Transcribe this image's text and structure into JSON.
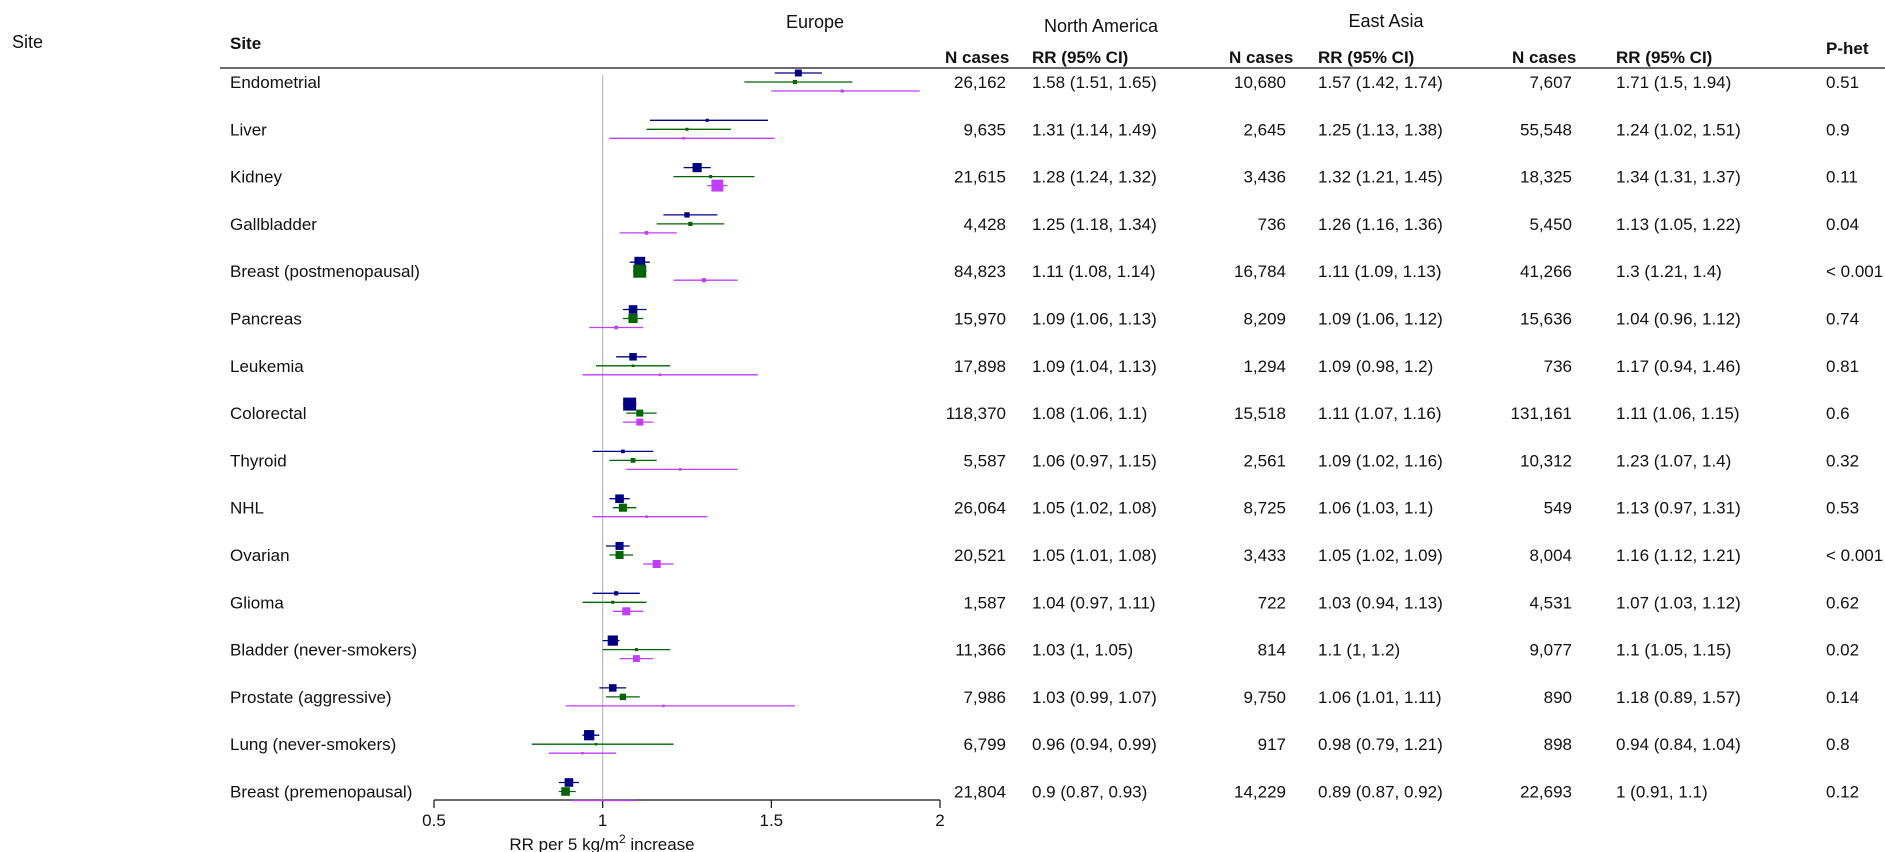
{
  "chart_data": {
    "type": "forest",
    "y_side_label": "Site",
    "column_header": "Site",
    "groups": [
      "Europe",
      "North America",
      "East Asia"
    ],
    "columns": {
      "cases": "N cases",
      "rr": "RR (95% CI)",
      "phet": "P-het"
    },
    "xlabel": "RR per 5 kg/m",
    "xlabel_sup": "2",
    "xlabel_tail": " increase",
    "xlim": [
      0.5,
      2
    ],
    "xticks": [
      0.5,
      1,
      1.5,
      2
    ],
    "xtick_labels": [
      "0.5",
      "1",
      "1.5",
      "2"
    ],
    "reference_line": 1,
    "series": [
      {
        "name": "Europe",
        "color": "#000080"
      },
      {
        "name": "North America",
        "color": "#006400"
      },
      {
        "name": "East Asia",
        "color": "#bf3fff"
      }
    ],
    "rows": [
      {
        "site": "Endometrial",
        "europe": {
          "cases": "26,162",
          "rr_text": "1.58 (1.51, 1.65)",
          "rr": 1.58,
          "lo": 1.51,
          "hi": 1.65,
          "weight": 0.45
        },
        "north_america": {
          "cases": "10,680",
          "rr_text": "1.57 (1.42, 1.74)",
          "rr": 1.57,
          "lo": 1.42,
          "hi": 1.74,
          "weight": 0.2
        },
        "east_asia": {
          "cases": "7,607",
          "rr_text": "1.71 (1.5, 1.94)",
          "rr": 1.71,
          "lo": 1.5,
          "hi": 1.94,
          "weight": 0.1
        },
        "phet": "0.51"
      },
      {
        "site": "Liver",
        "europe": {
          "cases": "9,635",
          "rr_text": "1.31 (1.14, 1.49)",
          "rr": 1.31,
          "lo": 1.14,
          "hi": 1.49,
          "weight": 0.1
        },
        "north_america": {
          "cases": "2,645",
          "rr_text": "1.25 (1.13, 1.38)",
          "rr": 1.25,
          "lo": 1.13,
          "hi": 1.38,
          "weight": 0.1
        },
        "east_asia": {
          "cases": "55,548",
          "rr_text": "1.24 (1.02, 1.51)",
          "rr": 1.24,
          "lo": 1.02,
          "hi": 1.51,
          "weight": 0.05
        },
        "phet": "0.9"
      },
      {
        "site": "Kidney",
        "europe": {
          "cases": "21,615",
          "rr_text": "1.28 (1.24, 1.32)",
          "rr": 1.28,
          "lo": 1.24,
          "hi": 1.32,
          "weight": 0.65
        },
        "north_america": {
          "cases": "3,436",
          "rr_text": "1.32 (1.21, 1.45)",
          "rr": 1.32,
          "lo": 1.21,
          "hi": 1.45,
          "weight": 0.1
        },
        "east_asia": {
          "cases": "18,325",
          "rr_text": "1.34 (1.31, 1.37)",
          "rr": 1.34,
          "lo": 1.31,
          "hi": 1.37,
          "weight": 0.9
        },
        "phet": "0.11"
      },
      {
        "site": "Gallbladder",
        "europe": {
          "cases": "4,428",
          "rr_text": "1.25 (1.18, 1.34)",
          "rr": 1.25,
          "lo": 1.18,
          "hi": 1.34,
          "weight": 0.3
        },
        "north_america": {
          "cases": "736",
          "rr_text": "1.26 (1.16, 1.36)",
          "rr": 1.26,
          "lo": 1.16,
          "hi": 1.36,
          "weight": 0.2
        },
        "east_asia": {
          "cases": "5,450",
          "rr_text": "1.13 (1.05, 1.22)",
          "rr": 1.13,
          "lo": 1.05,
          "hi": 1.22,
          "weight": 0.15
        },
        "phet": "0.04"
      },
      {
        "site": "Breast (postmenopausal)",
        "europe": {
          "cases": "84,823",
          "rr_text": "1.11 (1.08, 1.14)",
          "rr": 1.11,
          "lo": 1.08,
          "hi": 1.14,
          "weight": 0.8
        },
        "north_america": {
          "cases": "16,784",
          "rr_text": "1.11 (1.09, 1.13)",
          "rr": 1.11,
          "lo": 1.09,
          "hi": 1.13,
          "weight": 1.0
        },
        "east_asia": {
          "cases": "41,266",
          "rr_text": "1.3 (1.21, 1.4)",
          "rr": 1.3,
          "lo": 1.21,
          "hi": 1.4,
          "weight": 0.2
        },
        "phet": "< 0.001"
      },
      {
        "site": "Pancreas",
        "europe": {
          "cases": "15,970",
          "rr_text": "1.09 (1.06, 1.13)",
          "rr": 1.09,
          "lo": 1.06,
          "hi": 1.13,
          "weight": 0.6
        },
        "north_america": {
          "cases": "8,209",
          "rr_text": "1.09 (1.06, 1.12)",
          "rr": 1.09,
          "lo": 1.06,
          "hi": 1.12,
          "weight": 0.65
        },
        "east_asia": {
          "cases": "15,636",
          "rr_text": "1.04 (0.96, 1.12)",
          "rr": 1.04,
          "lo": 0.96,
          "hi": 1.12,
          "weight": 0.15
        },
        "phet": "0.74"
      },
      {
        "site": "Leukemia",
        "europe": {
          "cases": "17,898",
          "rr_text": "1.09 (1.04, 1.13)",
          "rr": 1.09,
          "lo": 1.04,
          "hi": 1.13,
          "weight": 0.5
        },
        "north_america": {
          "cases": "1,294",
          "rr_text": "1.09 (0.98, 1.2)",
          "rr": 1.09,
          "lo": 0.98,
          "hi": 1.2,
          "weight": 0.05
        },
        "east_asia": {
          "cases": "736",
          "rr_text": "1.17 (0.94, 1.46)",
          "rr": 1.17,
          "lo": 0.94,
          "hi": 1.46,
          "weight": 0.05
        },
        "phet": "0.81"
      },
      {
        "site": "Colorectal",
        "europe": {
          "cases": "118,370",
          "rr_text": "1.08 (1.06, 1.1)",
          "rr": 1.08,
          "lo": 1.06,
          "hi": 1.1,
          "weight": 1.0
        },
        "north_america": {
          "cases": "15,518",
          "rr_text": "1.11 (1.07, 1.16)",
          "rr": 1.11,
          "lo": 1.07,
          "hi": 1.16,
          "weight": 0.45
        },
        "east_asia": {
          "cases": "131,161",
          "rr_text": "1.11 (1.06, 1.15)",
          "rr": 1.11,
          "lo": 1.06,
          "hi": 1.15,
          "weight": 0.45
        },
        "phet": "0.6"
      },
      {
        "site": "Thyroid",
        "europe": {
          "cases": "5,587",
          "rr_text": "1.06 (0.97, 1.15)",
          "rr": 1.06,
          "lo": 0.97,
          "hi": 1.15,
          "weight": 0.15
        },
        "north_america": {
          "cases": "2,561",
          "rr_text": "1.09 (1.02, 1.16)",
          "rr": 1.09,
          "lo": 1.02,
          "hi": 1.16,
          "weight": 0.25
        },
        "east_asia": {
          "cases": "10,312",
          "rr_text": "1.23 (1.07, 1.4)",
          "rr": 1.23,
          "lo": 1.07,
          "hi": 1.4,
          "weight": 0.05
        },
        "phet": "0.32"
      },
      {
        "site": "NHL",
        "europe": {
          "cases": "26,064",
          "rr_text": "1.05 (1.02, 1.08)",
          "rr": 1.05,
          "lo": 1.02,
          "hi": 1.08,
          "weight": 0.6
        },
        "north_america": {
          "cases": "8,725",
          "rr_text": "1.06 (1.03, 1.1)",
          "rr": 1.06,
          "lo": 1.03,
          "hi": 1.1,
          "weight": 0.55
        },
        "east_asia": {
          "cases": "549",
          "rr_text": "1.13 (0.97, 1.31)",
          "rr": 1.13,
          "lo": 0.97,
          "hi": 1.31,
          "weight": 0.05
        },
        "phet": "0.53"
      },
      {
        "site": "Ovarian",
        "europe": {
          "cases": "20,521",
          "rr_text": "1.05 (1.01, 1.08)",
          "rr": 1.05,
          "lo": 1.01,
          "hi": 1.08,
          "weight": 0.55
        },
        "north_america": {
          "cases": "3,433",
          "rr_text": "1.05 (1.02, 1.09)",
          "rr": 1.05,
          "lo": 1.02,
          "hi": 1.09,
          "weight": 0.55
        },
        "east_asia": {
          "cases": "8,004",
          "rr_text": "1.16 (1.12, 1.21)",
          "rr": 1.16,
          "lo": 1.12,
          "hi": 1.21,
          "weight": 0.55
        },
        "phet": "< 0.001"
      },
      {
        "site": "Glioma",
        "europe": {
          "cases": "1,587",
          "rr_text": "1.04 (0.97, 1.11)",
          "rr": 1.04,
          "lo": 0.97,
          "hi": 1.11,
          "weight": 0.2
        },
        "north_america": {
          "cases": "722",
          "rr_text": "1.03 (0.94, 1.13)",
          "rr": 1.03,
          "lo": 0.94,
          "hi": 1.13,
          "weight": 0.1
        },
        "east_asia": {
          "cases": "4,531",
          "rr_text": "1.07 (1.03, 1.12)",
          "rr": 1.07,
          "lo": 1.03,
          "hi": 1.12,
          "weight": 0.55
        },
        "phet": "0.62"
      },
      {
        "site": "Bladder (never-smokers)",
        "europe": {
          "cases": "11,366",
          "rr_text": "1.03 (1, 1.05)",
          "rr": 1.03,
          "lo": 1.0,
          "hi": 1.05,
          "weight": 0.75
        },
        "north_america": {
          "cases": "814",
          "rr_text": "1.1 (1, 1.2)",
          "rr": 1.1,
          "lo": 1.0,
          "hi": 1.2,
          "weight": 0.1
        },
        "east_asia": {
          "cases": "9,077",
          "rr_text": "1.1 (1.05, 1.15)",
          "rr": 1.1,
          "lo": 1.05,
          "hi": 1.15,
          "weight": 0.45
        },
        "phet": "0.02"
      },
      {
        "site": "Prostate (aggressive)",
        "europe": {
          "cases": "7,986",
          "rr_text": "1.03 (0.99, 1.07)",
          "rr": 1.03,
          "lo": 0.99,
          "hi": 1.07,
          "weight": 0.5
        },
        "north_america": {
          "cases": "9,750",
          "rr_text": "1.06 (1.01, 1.11)",
          "rr": 1.06,
          "lo": 1.01,
          "hi": 1.11,
          "weight": 0.4
        },
        "east_asia": {
          "cases": "890",
          "rr_text": "1.18 (0.89, 1.57)",
          "rr": 1.18,
          "lo": 0.89,
          "hi": 1.57,
          "weight": 0.05
        },
        "phet": "0.14"
      },
      {
        "site": "Lung (never-smokers)",
        "europe": {
          "cases": "6,799",
          "rr_text": "0.96 (0.94, 0.99)",
          "rr": 0.96,
          "lo": 0.94,
          "hi": 0.99,
          "weight": 0.75
        },
        "north_america": {
          "cases": "917",
          "rr_text": "0.98 (0.79, 1.21)",
          "rr": 0.98,
          "lo": 0.79,
          "hi": 1.21,
          "weight": 0.05
        },
        "east_asia": {
          "cases": "898",
          "rr_text": "0.94 (0.84, 1.04)",
          "rr": 0.94,
          "lo": 0.84,
          "hi": 1.04,
          "weight": 0.05
        },
        "phet": "0.8"
      },
      {
        "site": "Breast (premenopausal)",
        "europe": {
          "cases": "21,804",
          "rr_text": "0.9 (0.87, 0.93)",
          "rr": 0.9,
          "lo": 0.87,
          "hi": 0.93,
          "weight": 0.6
        },
        "north_america": {
          "cases": "14,229",
          "rr_text": "0.89 (0.87, 0.92)",
          "rr": 0.89,
          "lo": 0.87,
          "hi": 0.92,
          "weight": 0.6
        },
        "east_asia": {
          "cases": "22,693",
          "rr_text": "1 (0.91, 1.1)",
          "rr": 1.0,
          "lo": 0.91,
          "hi": 1.1,
          "weight": 0.05
        },
        "phet": "0.12"
      }
    ]
  }
}
